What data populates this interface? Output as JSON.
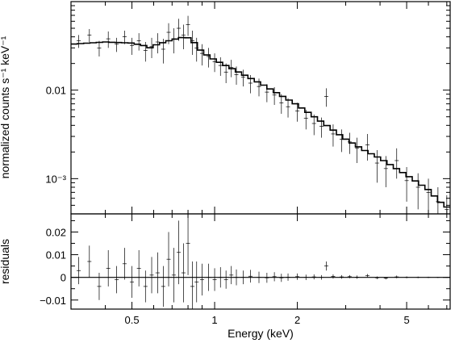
{
  "chart_data": [
    {
      "type": "scatter",
      "panel": "spectrum",
      "xlabel": "Energy (keV)",
      "ylabel": "normalized counts s⁻¹ keV⁻¹",
      "xscale": "log",
      "yscale": "log",
      "xlim": [
        0.3,
        7.2
      ],
      "ylim": [
        0.0004,
        0.1
      ],
      "yticks": [
        {
          "value": 0.01,
          "label": "0.01"
        },
        {
          "value": 0.001,
          "label": "10⁻³"
        }
      ],
      "grid": false,
      "series": [
        {
          "kind": "model",
          "style": "step-line",
          "x": [
            0.3,
            0.4,
            0.5,
            0.55,
            0.58,
            0.62,
            0.7,
            0.78,
            0.82,
            0.86,
            0.9,
            1.0,
            1.2,
            1.5,
            2.0,
            2.5,
            3.0,
            3.5,
            4.0,
            5.0,
            6.0,
            6.6,
            7.2
          ],
          "y": [
            0.033,
            0.035,
            0.034,
            0.032,
            0.03,
            0.033,
            0.037,
            0.04,
            0.038,
            0.032,
            0.027,
            0.022,
            0.0165,
            0.0115,
            0.0068,
            0.0042,
            0.0028,
            0.0021,
            0.0017,
            0.0011,
            0.00075,
            0.00055,
            0.00045
          ]
        },
        {
          "kind": "data",
          "style": "crosses",
          "x": [
            0.32,
            0.35,
            0.38,
            0.41,
            0.44,
            0.47,
            0.5,
            0.53,
            0.56,
            0.59,
            0.62,
            0.65,
            0.68,
            0.71,
            0.74,
            0.77,
            0.8,
            0.83,
            0.86,
            0.9,
            0.95,
            1.0,
            1.05,
            1.1,
            1.15,
            1.2,
            1.27,
            1.35,
            1.45,
            1.55,
            1.65,
            1.75,
            1.85,
            2.0,
            2.15,
            2.3,
            2.45,
            2.55,
            2.7,
            2.9,
            3.1,
            3.3,
            3.6,
            3.9,
            4.2,
            4.6,
            5.0,
            5.5,
            6.0,
            6.5,
            7.0
          ],
          "y": [
            0.036,
            0.042,
            0.03,
            0.038,
            0.033,
            0.04,
            0.032,
            0.036,
            0.028,
            0.031,
            0.035,
            0.029,
            0.045,
            0.038,
            0.05,
            0.042,
            0.055,
            0.036,
            0.03,
            0.026,
            0.024,
            0.021,
            0.019,
            0.016,
            0.018,
            0.015,
            0.014,
            0.012,
            0.011,
            0.0095,
            0.0088,
            0.0072,
            0.0065,
            0.0058,
            0.0048,
            0.0042,
            0.0039,
            0.0085,
            0.0032,
            0.0028,
            0.0026,
            0.0022,
            0.0024,
            0.0015,
            0.0013,
            0.0016,
            0.00095,
            0.0008,
            0.0007,
            0.00055,
            0.00045
          ],
          "err": [
            0.006,
            0.007,
            0.006,
            0.008,
            0.006,
            0.007,
            0.007,
            0.008,
            0.007,
            0.008,
            0.009,
            0.009,
            0.012,
            0.012,
            0.014,
            0.013,
            0.014,
            0.011,
            0.009,
            0.007,
            0.006,
            0.005,
            0.0045,
            0.004,
            0.004,
            0.0035,
            0.003,
            0.0028,
            0.0025,
            0.0022,
            0.002,
            0.0018,
            0.0016,
            0.0014,
            0.0012,
            0.0011,
            0.001,
            0.002,
            0.0009,
            0.0008,
            0.0007,
            0.0007,
            0.0008,
            0.0006,
            0.0005,
            0.0006,
            0.0004,
            0.00035,
            0.0003,
            0.00025,
            0.0002
          ]
        }
      ]
    },
    {
      "type": "scatter",
      "panel": "residuals",
      "xlabel": "Energy (keV)",
      "ylabel": "residuals",
      "xscale": "log",
      "xlim": [
        0.3,
        7.2
      ],
      "ylim": [
        -0.014,
        0.028
      ],
      "yticks": [
        {
          "value": 0.02,
          "label": "0.02"
        },
        {
          "value": 0.01,
          "label": "0.01"
        },
        {
          "value": 0,
          "label": "0"
        },
        {
          "value": -0.01,
          "label": "−0.01"
        }
      ],
      "xticks": [
        {
          "value": 0.5,
          "label": "0.5"
        },
        {
          "value": 1,
          "label": "1"
        },
        {
          "value": 2,
          "label": "2"
        },
        {
          "value": 5,
          "label": "5"
        }
      ],
      "grid": false,
      "series": [
        {
          "kind": "data",
          "style": "crosses",
          "x": [
            0.32,
            0.35,
            0.38,
            0.41,
            0.44,
            0.47,
            0.5,
            0.53,
            0.56,
            0.59,
            0.62,
            0.65,
            0.68,
            0.71,
            0.74,
            0.77,
            0.8,
            0.83,
            0.86,
            0.9,
            0.95,
            1.0,
            1.05,
            1.1,
            1.15,
            1.2,
            1.27,
            1.35,
            1.45,
            1.55,
            1.65,
            1.75,
            1.85,
            2.0,
            2.15,
            2.3,
            2.45,
            2.55,
            2.7,
            2.9,
            3.1,
            3.3,
            3.6,
            3.9,
            4.2,
            4.6,
            5.0,
            5.5,
            6.0,
            6.5,
            7.0
          ],
          "y": [
            0.003,
            0.007,
            -0.004,
            0.004,
            -0.001,
            0.006,
            -0.002,
            0.004,
            -0.004,
            0.001,
            0.002,
            -0.004,
            0.008,
            0.001,
            0.011,
            0.002,
            0.015,
            -0.004,
            -0.002,
            -0.001,
            0.0,
            -0.001,
            0.0,
            -0.001,
            0.001,
            0.0,
            0.0,
            0.0005,
            0.0,
            -0.0002,
            0.0003,
            -0.0002,
            0.0001,
            0.0003,
            0.0,
            0.0002,
            0.0,
            0.005,
            0.0004,
            0.0002,
            0.0003,
            0.0001,
            0.0007,
            -0.0002,
            -0.0004,
            0.0002,
            0.0,
            0.0,
            0.0,
            0.0,
            0.0
          ],
          "err": [
            0.006,
            0.007,
            0.006,
            0.008,
            0.006,
            0.007,
            0.007,
            0.008,
            0.007,
            0.008,
            0.009,
            0.009,
            0.012,
            0.012,
            0.014,
            0.013,
            0.014,
            0.011,
            0.009,
            0.007,
            0.006,
            0.005,
            0.0045,
            0.004,
            0.004,
            0.0035,
            0.003,
            0.0028,
            0.0025,
            0.0022,
            0.002,
            0.0018,
            0.0016,
            0.0014,
            0.0012,
            0.0011,
            0.001,
            0.002,
            0.0009,
            0.0008,
            0.0007,
            0.0007,
            0.0008,
            0.0006,
            0.0005,
            0.0006,
            0.0004,
            0.00035,
            0.0003,
            0.00025,
            0.0002
          ]
        }
      ]
    }
  ]
}
